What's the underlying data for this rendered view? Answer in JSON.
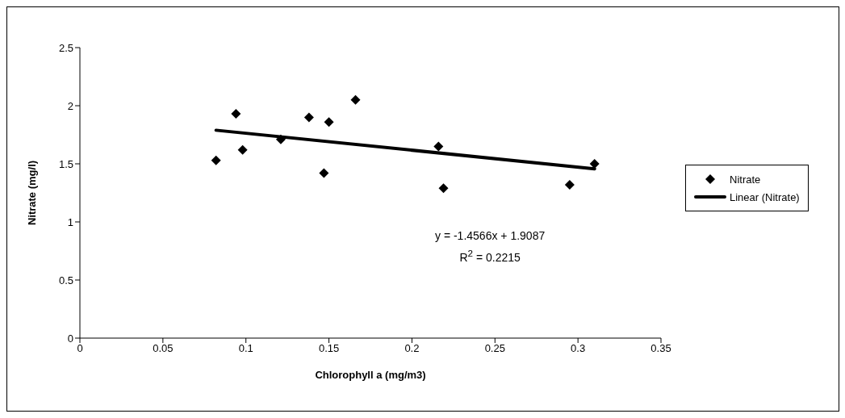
{
  "chart_data": {
    "type": "scatter",
    "xlabel": "Chlorophyll a (mg/m3)",
    "ylabel": "Nitrate (mg/l)",
    "xlim": [
      0,
      0.35
    ],
    "xticks": [
      0,
      0.05,
      0.1,
      0.15,
      0.2,
      0.25,
      0.3,
      0.35
    ],
    "ylim": [
      0,
      2.5
    ],
    "yticks": [
      0,
      0.5,
      1,
      1.5,
      2,
      2.5
    ],
    "series": [
      {
        "name": "Nitrate",
        "color": "#000000",
        "marker": "diamond",
        "x": [
          0.082,
          0.094,
          0.098,
          0.121,
          0.138,
          0.147,
          0.15,
          0.166,
          0.216,
          0.219,
          0.295,
          0.31
        ],
        "values": [
          1.53,
          1.93,
          1.62,
          1.71,
          1.9,
          1.42,
          1.86,
          2.05,
          1.65,
          1.29,
          1.32,
          1.5
        ]
      },
      {
        "name": "Linear (Nitrate)",
        "type": "line",
        "color": "#000000",
        "marker": "none",
        "x": [
          0.082,
          0.31
        ],
        "values": [
          1.789,
          1.457
        ]
      }
    ],
    "annotations": [
      "y = -1.4566x + 1.9087",
      "R$^{2}$ = 0.2215"
    ],
    "legend": "right",
    "grid": false
  }
}
